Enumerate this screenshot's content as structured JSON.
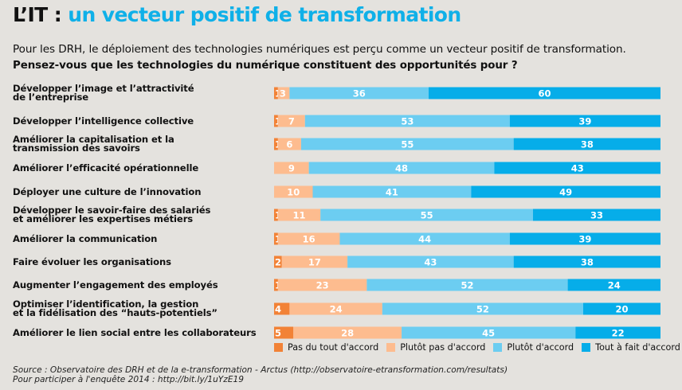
{
  "header": {
    "title_prefix": "L’IT : ",
    "title_main": "un vecteur positif de transformation",
    "intro": "Pour les DRH, le déploiement des technologies numériques est perçu comme un vecteur positif de transformation.",
    "question": "Pensez-vous que les technologies du numérique constituent des opportunités pour ?"
  },
  "colors": {
    "title_accent": "#0fb0e8",
    "pas_du_tout": "#f28236",
    "plutot_pas": "#fdbc8f",
    "plutot": "#6ccdf1",
    "tout_a_fait": "#06ade9"
  },
  "chart_data": {
    "type": "bar",
    "orientation": "horizontal",
    "stacked": true,
    "title": "Pensez-vous que les technologies du numérique constituent des opportunités pour ?",
    "xlabel": "",
    "ylabel": "",
    "xlim": [
      0,
      100
    ],
    "unit": "%",
    "legend_position": "bottom",
    "grid": false,
    "categories": [
      [
        "Développer l’image et l’attractivité",
        "de l’entreprise"
      ],
      [
        "Développer l’intelligence collective"
      ],
      [
        "Améliorer la capitalisation et la",
        "transmission des savoirs"
      ],
      [
        "Améliorer l’efficacité opérationnelle"
      ],
      [
        "Déployer une culture de l’innovation"
      ],
      [
        "Développer le savoir-faire des salariés",
        "et améliorer les expertises métiers"
      ],
      [
        "Améliorer la communication"
      ],
      [
        "Faire évoluer les organisations"
      ],
      [
        "Augmenter l’engagement des employés"
      ],
      [
        "Optimiser l’identification, la gestion",
        "et la fidélisation des “hauts-potentiels”"
      ],
      [
        "Améliorer le lien social entre les collaborateurs"
      ]
    ],
    "series": [
      {
        "name": "Pas du tout d'accord",
        "color_key": "pas_du_tout",
        "values": [
          1,
          1,
          1,
          0,
          0,
          1,
          1,
          2,
          1,
          4,
          5
        ]
      },
      {
        "name": "Plutôt pas d'accord",
        "color_key": "plutot_pas",
        "values": [
          3,
          7,
          6,
          9,
          10,
          11,
          16,
          17,
          23,
          24,
          28
        ]
      },
      {
        "name": "Plutôt d'accord",
        "color_key": "plutot",
        "values": [
          36,
          53,
          55,
          48,
          41,
          55,
          44,
          43,
          52,
          52,
          45
        ]
      },
      {
        "name": "Tout à fait d'accord",
        "color_key": "tout_a_fait",
        "values": [
          60,
          39,
          38,
          43,
          49,
          33,
          39,
          38,
          24,
          20,
          22
        ]
      }
    ]
  },
  "legend": {
    "items": [
      {
        "label": "Pas du tout d'accord",
        "color_key": "pas_du_tout"
      },
      {
        "label": "Plutôt pas d'accord",
        "color_key": "plutot_pas"
      },
      {
        "label": "Plutôt d'accord",
        "color_key": "plutot"
      },
      {
        "label": "Tout à fait d'accord",
        "color_key": "tout_a_fait"
      }
    ]
  },
  "footer": {
    "source": "Source : Observatoire des DRH et de la e-transformation - Arctus (http://observatoire-etransformation.com/resultats)",
    "participate": "Pour participer à l'enquête 2014 : http://bit.ly/1uYzE19"
  }
}
